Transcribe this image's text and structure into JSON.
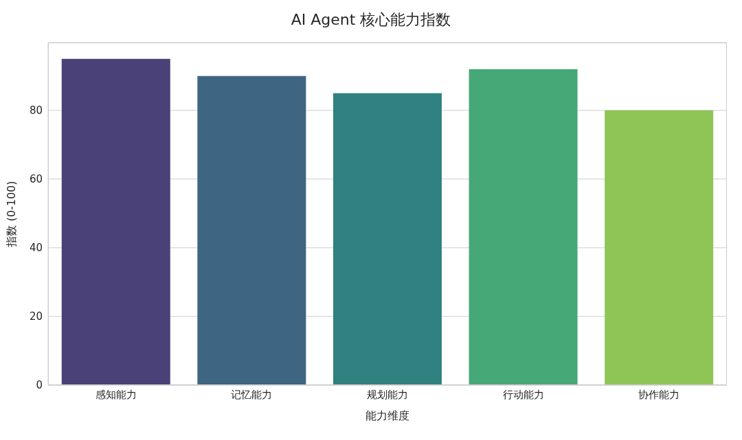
{
  "chart_data": {
    "type": "bar",
    "title": "AI Agent 核心能力指数",
    "xlabel": "能力维度",
    "ylabel": "指数 (0-100)",
    "categories": [
      "感知能力",
      "记忆能力",
      "规划能力",
      "行动能力",
      "协作能力"
    ],
    "values": [
      95,
      90,
      85,
      92,
      80
    ],
    "colors": [
      "#4a4178",
      "#3e6581",
      "#2f827f",
      "#47a877",
      "#8fc556"
    ],
    "ylim": [
      0,
      99.75
    ],
    "yticks": [
      0,
      20,
      40,
      60,
      80
    ],
    "grid": "y"
  }
}
